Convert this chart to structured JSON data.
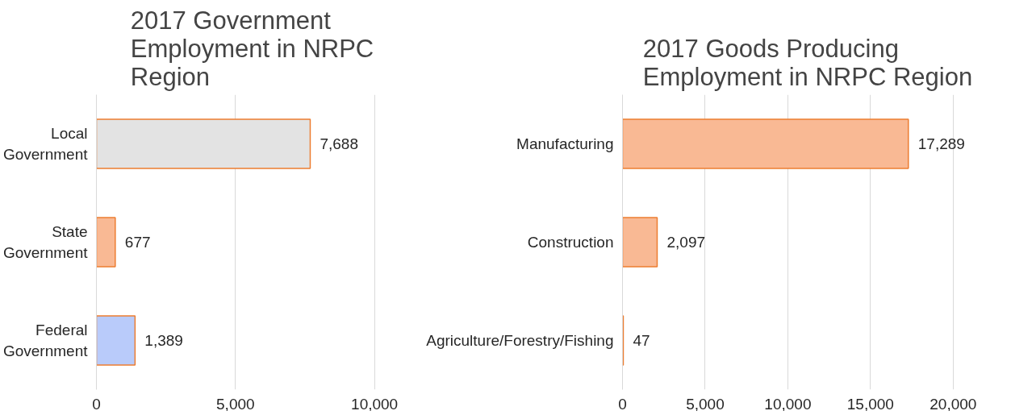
{
  "chart_data": [
    {
      "type": "bar",
      "orientation": "horizontal",
      "title": "2017 Government Employment in NRPC Region",
      "categories": [
        "Local Government",
        "State Government",
        "Federal Government"
      ],
      "values": [
        7688,
        677,
        1389
      ],
      "colors": [
        "#e3e3e3",
        "#f9b994",
        "#b9cbfa"
      ],
      "xlim": [
        0,
        10000
      ],
      "xticks": [
        {
          "value": 0,
          "label": "0"
        },
        {
          "value": 5000,
          "label": "5,000"
        },
        {
          "value": 10000,
          "label": "10,000"
        }
      ],
      "grid": "x",
      "value_labels": [
        "7,688",
        "677",
        "1,389"
      ]
    },
    {
      "type": "bar",
      "orientation": "horizontal",
      "title": "2017 Goods Producing Employment in NRPC Region",
      "categories": [
        "Manufacturing",
        "Construction",
        "Agriculture/Forestry/Fishing"
      ],
      "values": [
        17289,
        2097,
        47
      ],
      "colors": [
        "#f9b994",
        "#f9b994",
        "#c8c8c8"
      ],
      "xlim": [
        0,
        20000
      ],
      "xticks": [
        {
          "value": 0,
          "label": "0"
        },
        {
          "value": 5000,
          "label": "5,000"
        },
        {
          "value": 10000,
          "label": "10,000"
        },
        {
          "value": 15000,
          "label": "15,000"
        },
        {
          "value": 20000,
          "label": "20,000"
        }
      ],
      "grid": "x",
      "value_labels": [
        "17,289",
        "2,097",
        "47"
      ]
    }
  ]
}
